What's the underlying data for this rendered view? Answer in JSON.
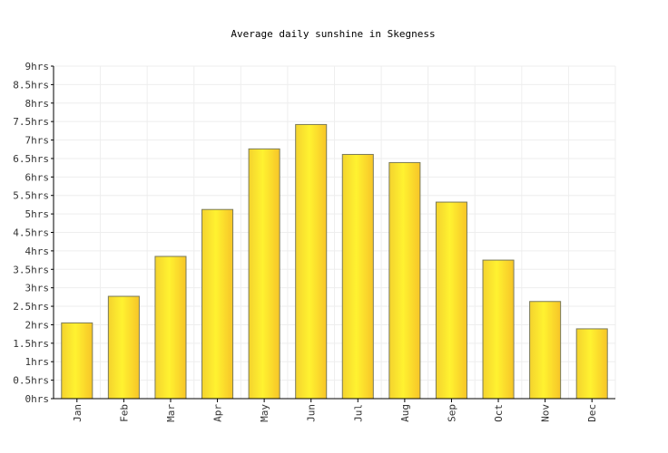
{
  "chart_data": {
    "type": "bar",
    "title": "Average daily sunshine in Skegness",
    "xlabel": "",
    "ylabel": "",
    "categories": [
      "Jan",
      "Feb",
      "Mar",
      "Apr",
      "May",
      "Jun",
      "Jul",
      "Aug",
      "Sep",
      "Oct",
      "Nov",
      "Dec"
    ],
    "values": [
      2.05,
      2.77,
      3.85,
      5.12,
      6.76,
      7.42,
      6.61,
      6.39,
      5.32,
      3.75,
      2.63,
      1.89
    ],
    "unit_suffix": "hrs",
    "ylim": [
      0,
      9
    ],
    "ytick_step": 0.5,
    "yticks": [
      "0hrs",
      "0.5hrs",
      "1hrs",
      "1.5hrs",
      "2hrs",
      "2.5hrs",
      "3hrs",
      "3.5hrs",
      "4hrs",
      "4.5hrs",
      "5hrs",
      "5.5hrs",
      "6hrs",
      "6.5hrs",
      "7hrs",
      "7.5hrs",
      "8hrs",
      "8.5hrs",
      "9hrs"
    ],
    "grid": true,
    "legend": "none",
    "colors": {
      "bar_left": "#f4d32e",
      "bar_mid": "#fff230",
      "bar_right": "#f7c528",
      "bar_stroke": "#7a7a5a",
      "grid": "#eeeeee",
      "axis": "#000000",
      "text": "#333333"
    }
  }
}
